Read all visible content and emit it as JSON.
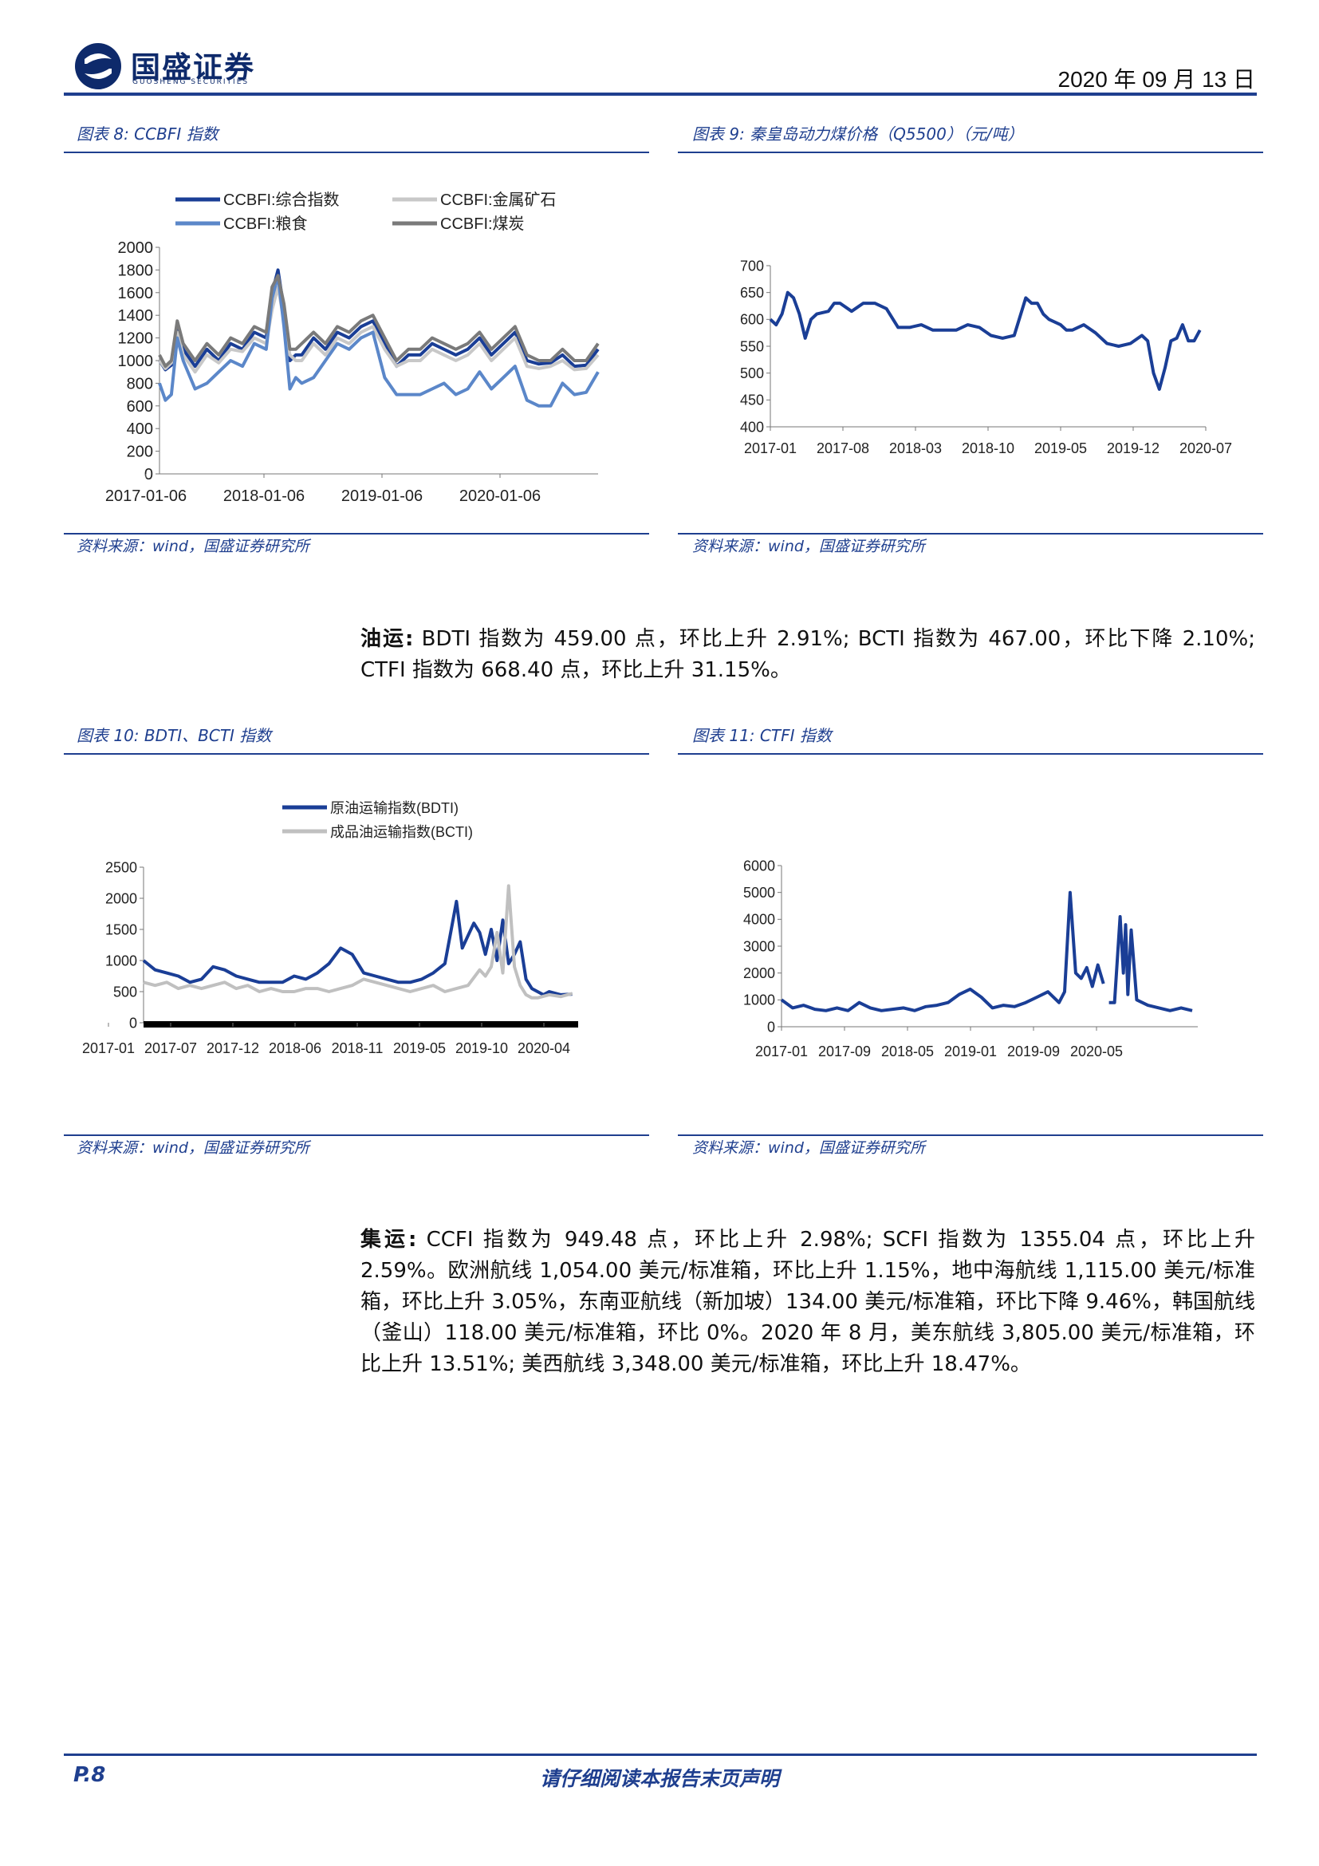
{
  "header": {
    "logo_cn": "国盛证券",
    "logo_en": "GUOSHENG SECURITIES",
    "date": "2020 年 09 月 13 日"
  },
  "figures": {
    "fig8": {
      "title": "图表 8:  CCBFI 指数",
      "source": "资料来源：wind，国盛证券研究所"
    },
    "fig9": {
      "title": "图表 9:  秦皇岛动力煤价格（Q5500）（元/吨）",
      "source": "资料来源：wind，国盛证券研究所"
    },
    "fig10": {
      "title": "图表 10:  BDTI、BCTI 指数",
      "source": "资料来源：wind，国盛证券研究所"
    },
    "fig11": {
      "title": "图表 11:  CTFI 指数",
      "source": "资料来源：wind，国盛证券研究所"
    }
  },
  "paragraphs": {
    "oil_label": "油运:",
    "oil_text": " BDTI 指数为 459.00 点，环比上升 2.91%; BCTI 指数为 467.00，环比下降 2.10%; CTFI 指数为 668.40 点，环比上升 31.15%。",
    "container_label": "集运:",
    "container_text": " CCFI 指数为 949.48 点，环比上升 2.98%; SCFI 指数为 1355.04 点，环比上升 2.59%。欧洲航线 1,054.00 美元/标准箱，环比上升 1.15%，地中海航线 1,115.00 美元/标准箱，环比上升 3.05%，东南亚航线（新加坡）134.00 美元/标准箱，环比下降 9.46%，韩国航线（釜山）118.00 美元/标准箱，环比 0%。2020 年 8 月，美东航线 3,805.00 美元/标准箱，环比上升 13.51%; 美西航线 3,348.00 美元/标准箱，环比上升 18.47%。"
  },
  "footer": {
    "page": "P.8",
    "disclaimer": "请仔细阅读本报告末页声明"
  },
  "chart_data": [
    {
      "id": "ccbfi",
      "type": "line",
      "title": "",
      "x_ticks": [
        "2017-01-06",
        "2018-01-06",
        "2019-01-06",
        "2020-01-06"
      ],
      "ylim": [
        0,
        2000
      ],
      "y_ticks": [
        0,
        200,
        400,
        600,
        800,
        1000,
        1200,
        1400,
        1600,
        1800,
        2000
      ],
      "legend_position": "top",
      "x_range": [
        2017.0,
        2020.7
      ],
      "series": [
        {
          "name": "CCBFI:综合指数",
          "color": "#1a3e96",
          "width": 4,
          "x": [
            2017.0,
            2017.05,
            2017.1,
            2017.15,
            2017.2,
            2017.3,
            2017.4,
            2017.5,
            2017.6,
            2017.7,
            2017.8,
            2017.9,
            2017.95,
            2018.0,
            2018.05,
            2018.1,
            2018.15,
            2018.2,
            2018.3,
            2018.4,
            2018.5,
            2018.6,
            2018.7,
            2018.8,
            2018.9,
            2019.0,
            2019.1,
            2019.2,
            2019.3,
            2019.4,
            2019.5,
            2019.6,
            2019.7,
            2019.8,
            2019.9,
            2020.0,
            2020.1,
            2020.2,
            2020.3,
            2020.4,
            2020.5,
            2020.6,
            2020.7
          ],
          "values": [
            1000,
            920,
            960,
            1300,
            1100,
            950,
            1100,
            1000,
            1150,
            1100,
            1250,
            1200,
            1600,
            1800,
            1450,
            1000,
            1050,
            1050,
            1200,
            1100,
            1250,
            1200,
            1300,
            1350,
            1150,
            950,
            1050,
            1050,
            1150,
            1100,
            1050,
            1100,
            1200,
            1050,
            1150,
            1250,
            1000,
            970,
            980,
            1050,
            950,
            960,
            1100
          ]
        },
        {
          "name": "CCBFI:金属矿石",
          "color": "#c8c8c8",
          "width": 4,
          "x": [
            2017.0,
            2017.05,
            2017.1,
            2017.15,
            2017.2,
            2017.3,
            2017.4,
            2017.5,
            2017.6,
            2017.7,
            2017.8,
            2017.9,
            2017.95,
            2018.0,
            2018.05,
            2018.1,
            2018.15,
            2018.2,
            2018.3,
            2018.4,
            2018.5,
            2018.6,
            2018.7,
            2018.8,
            2018.9,
            2019.0,
            2019.1,
            2019.2,
            2019.3,
            2019.4,
            2019.5,
            2019.6,
            2019.7,
            2019.8,
            2019.9,
            2020.0,
            2020.1,
            2020.2,
            2020.3,
            2020.4,
            2020.5,
            2020.6,
            2020.7
          ],
          "values": [
            1000,
            930,
            980,
            1250,
            1050,
            900,
            1050,
            980,
            1100,
            1080,
            1200,
            1150,
            1450,
            1650,
            1350,
            1050,
            1000,
            1000,
            1150,
            1050,
            1200,
            1150,
            1250,
            1300,
            1100,
            950,
            1000,
            1000,
            1100,
            1050,
            1000,
            1050,
            1150,
            1000,
            1100,
            1200,
            950,
            930,
            950,
            1000,
            920,
            930,
            1050
          ]
        },
        {
          "name": "CCBFI:粮食",
          "color": "#5b87c9",
          "width": 4,
          "x": [
            2017.0,
            2017.05,
            2017.1,
            2017.15,
            2017.2,
            2017.3,
            2017.4,
            2017.5,
            2017.6,
            2017.7,
            2017.8,
            2017.9,
            2017.95,
            2018.0,
            2018.05,
            2018.1,
            2018.15,
            2018.2,
            2018.3,
            2018.4,
            2018.5,
            2018.6,
            2018.7,
            2018.8,
            2018.9,
            2019.0,
            2019.1,
            2019.2,
            2019.3,
            2019.4,
            2019.5,
            2019.6,
            2019.7,
            2019.8,
            2019.9,
            2020.0,
            2020.1,
            2020.2,
            2020.3,
            2020.4,
            2020.5,
            2020.6,
            2020.7
          ],
          "values": [
            800,
            650,
            700,
            1200,
            1000,
            750,
            800,
            900,
            1000,
            950,
            1150,
            1100,
            1550,
            1750,
            1300,
            750,
            850,
            800,
            850,
            1000,
            1150,
            1100,
            1200,
            1250,
            850,
            700,
            700,
            700,
            750,
            800,
            700,
            750,
            900,
            750,
            850,
            950,
            650,
            600,
            600,
            800,
            700,
            720,
            900
          ]
        },
        {
          "name": "CCBFI:煤炭",
          "color": "#7a7a7a",
          "width": 4,
          "x": [
            2017.0,
            2017.05,
            2017.1,
            2017.15,
            2017.2,
            2017.3,
            2017.4,
            2017.5,
            2017.6,
            2017.7,
            2017.8,
            2017.9,
            2017.95,
            2018.0,
            2018.05,
            2018.1,
            2018.15,
            2018.2,
            2018.3,
            2018.4,
            2018.5,
            2018.6,
            2018.7,
            2018.8,
            2018.9,
            2019.0,
            2019.1,
            2019.2,
            2019.3,
            2019.4,
            2019.5,
            2019.6,
            2019.7,
            2019.8,
            2019.9,
            2020.0,
            2020.1,
            2020.2,
            2020.3,
            2020.4,
            2020.5,
            2020.6,
            2020.7
          ],
          "values": [
            1050,
            950,
            1000,
            1350,
            1150,
            1000,
            1150,
            1050,
            1200,
            1150,
            1300,
            1250,
            1650,
            1750,
            1500,
            1100,
            1100,
            1150,
            1250,
            1150,
            1300,
            1250,
            1350,
            1400,
            1200,
            1000,
            1100,
            1100,
            1200,
            1150,
            1100,
            1150,
            1250,
            1100,
            1200,
            1300,
            1050,
            1000,
            1000,
            1100,
            1000,
            1000,
            1150
          ]
        }
      ]
    },
    {
      "id": "coal",
      "type": "line",
      "title": "",
      "x_ticks": [
        "2017-01",
        "2017-08",
        "2018-03",
        "2018-10",
        "2019-05",
        "2019-12",
        "2020-07"
      ],
      "ylim": [
        400,
        700
      ],
      "y_ticks": [
        400,
        450,
        500,
        550,
        600,
        650,
        700
      ],
      "x_range": [
        2017.0,
        2020.75
      ],
      "series": [
        {
          "name": "",
          "color": "#1a3e96",
          "width": 4,
          "x": [
            2017.0,
            2017.05,
            2017.1,
            2017.15,
            2017.2,
            2017.25,
            2017.3,
            2017.35,
            2017.4,
            2017.5,
            2017.55,
            2017.6,
            2017.7,
            2017.8,
            2017.9,
            2018.0,
            2018.1,
            2018.2,
            2018.3,
            2018.4,
            2018.5,
            2018.6,
            2018.7,
            2018.8,
            2018.9,
            2019.0,
            2019.1,
            2019.2,
            2019.25,
            2019.3,
            2019.35,
            2019.4,
            2019.5,
            2019.55,
            2019.6,
            2019.7,
            2019.8,
            2019.9,
            2020.0,
            2020.1,
            2020.2,
            2020.25,
            2020.3,
            2020.35,
            2020.4,
            2020.45,
            2020.5,
            2020.55,
            2020.6,
            2020.65,
            2020.7
          ],
          "values": [
            600,
            590,
            610,
            650,
            640,
            610,
            565,
            600,
            610,
            615,
            630,
            630,
            615,
            630,
            630,
            620,
            585,
            585,
            590,
            580,
            580,
            580,
            590,
            585,
            570,
            565,
            570,
            640,
            630,
            630,
            610,
            600,
            590,
            580,
            580,
            590,
            575,
            555,
            550,
            555,
            570,
            560,
            500,
            470,
            510,
            560,
            565,
            590,
            560,
            560,
            580
          ]
        }
      ]
    },
    {
      "id": "bdti_bcti",
      "type": "line",
      "title": "",
      "x_ticks": [
        "2017-01",
        "2017-07",
        "2017-12",
        "2018-06",
        "2018-11",
        "2019-05",
        "2019-10",
        "2020-04"
      ],
      "ylim": [
        0,
        2500
      ],
      "y_ticks": [
        0,
        500,
        1000,
        1500,
        2000,
        2500
      ],
      "x_range": [
        2017.0,
        2020.75
      ],
      "legend_position": "top",
      "series": [
        {
          "name": "原油运输指数(BDTI)",
          "color": "#1a3e96",
          "width": 4,
          "x": [
            2017.0,
            2017.1,
            2017.2,
            2017.3,
            2017.4,
            2017.5,
            2017.6,
            2017.7,
            2017.8,
            2017.9,
            2018.0,
            2018.1,
            2018.2,
            2018.3,
            2018.4,
            2018.5,
            2018.6,
            2018.7,
            2018.8,
            2018.9,
            2019.0,
            2019.1,
            2019.2,
            2019.3,
            2019.4,
            2019.5,
            2019.6,
            2019.7,
            2019.75,
            2019.8,
            2019.85,
            2019.9,
            2019.95,
            2020.0,
            2020.05,
            2020.1,
            2020.15,
            2020.2,
            2020.25,
            2020.3,
            2020.35,
            2020.4,
            2020.45,
            2020.5,
            2020.6,
            2020.7
          ],
          "values": [
            1000,
            850,
            800,
            750,
            650,
            700,
            900,
            850,
            750,
            700,
            650,
            650,
            650,
            750,
            700,
            800,
            950,
            1200,
            1100,
            800,
            750,
            700,
            650,
            650,
            700,
            800,
            950,
            1950,
            1200,
            1400,
            1600,
            1450,
            1100,
            1500,
            1000,
            1650,
            950,
            1100,
            1300,
            700,
            550,
            500,
            450,
            500,
            450,
            460
          ]
        },
        {
          "name": "成品油运输指数(BCTI)",
          "color": "#c0c0c0",
          "width": 4,
          "x": [
            2017.0,
            2017.1,
            2017.2,
            2017.3,
            2017.4,
            2017.5,
            2017.6,
            2017.7,
            2017.8,
            2017.9,
            2018.0,
            2018.1,
            2018.2,
            2018.3,
            2018.4,
            2018.5,
            2018.6,
            2018.7,
            2018.8,
            2018.9,
            2019.0,
            2019.1,
            2019.2,
            2019.3,
            2019.4,
            2019.5,
            2019.6,
            2019.7,
            2019.8,
            2019.9,
            2019.95,
            2020.0,
            2020.05,
            2020.1,
            2020.15,
            2020.2,
            2020.25,
            2020.3,
            2020.35,
            2020.4,
            2020.5,
            2020.6,
            2020.7
          ],
          "values": [
            650,
            600,
            650,
            550,
            600,
            550,
            600,
            650,
            550,
            600,
            500,
            550,
            500,
            500,
            550,
            550,
            500,
            550,
            600,
            700,
            650,
            600,
            550,
            500,
            550,
            600,
            500,
            550,
            600,
            850,
            750,
            900,
            1450,
            800,
            2200,
            900,
            600,
            450,
            400,
            400,
            450,
            420,
            470
          ]
        }
      ]
    },
    {
      "id": "ctfi",
      "type": "line",
      "title": "",
      "x_ticks": [
        "2017-01",
        "2017-09",
        "2018-05",
        "2019-01",
        "2019-09",
        "2020-05"
      ],
      "ylim": [
        0,
        6000
      ],
      "y_ticks": [
        0,
        1000,
        2000,
        3000,
        4000,
        5000,
        6000
      ],
      "x_range": [
        2017.0,
        2020.75
      ],
      "series": [
        {
          "name": "",
          "color": "#1a3e96",
          "width": 4,
          "x": [
            2017.0,
            2017.1,
            2017.2,
            2017.3,
            2017.4,
            2017.5,
            2017.6,
            2017.7,
            2017.8,
            2017.9,
            2018.0,
            2018.1,
            2018.2,
            2018.3,
            2018.4,
            2018.5,
            2018.6,
            2018.7,
            2018.8,
            2018.9,
            2019.0,
            2019.1,
            2019.2,
            2019.3,
            2019.4,
            2019.5,
            2019.55,
            2019.6,
            2019.65,
            2019.7,
            2019.75,
            2019.8,
            2019.85,
            2019.9,
            null,
            2019.95,
            2020.0,
            2020.05,
            2020.08,
            2020.1,
            2020.12,
            2020.15,
            2020.2,
            2020.25,
            2020.3,
            2020.4,
            2020.5,
            2020.6,
            2020.7
          ],
          "values": [
            1000,
            700,
            800,
            650,
            600,
            700,
            600,
            900,
            700,
            600,
            650,
            700,
            600,
            750,
            800,
            900,
            1200,
            1400,
            1100,
            700,
            800,
            750,
            900,
            1100,
            1300,
            900,
            1300,
            5000,
            2000,
            1800,
            2200,
            1500,
            2300,
            1600,
            null,
            900,
            900,
            4100,
            2000,
            3800,
            1200,
            3600,
            1000,
            900,
            800,
            700,
            600,
            700,
            600
          ]
        }
      ]
    }
  ]
}
